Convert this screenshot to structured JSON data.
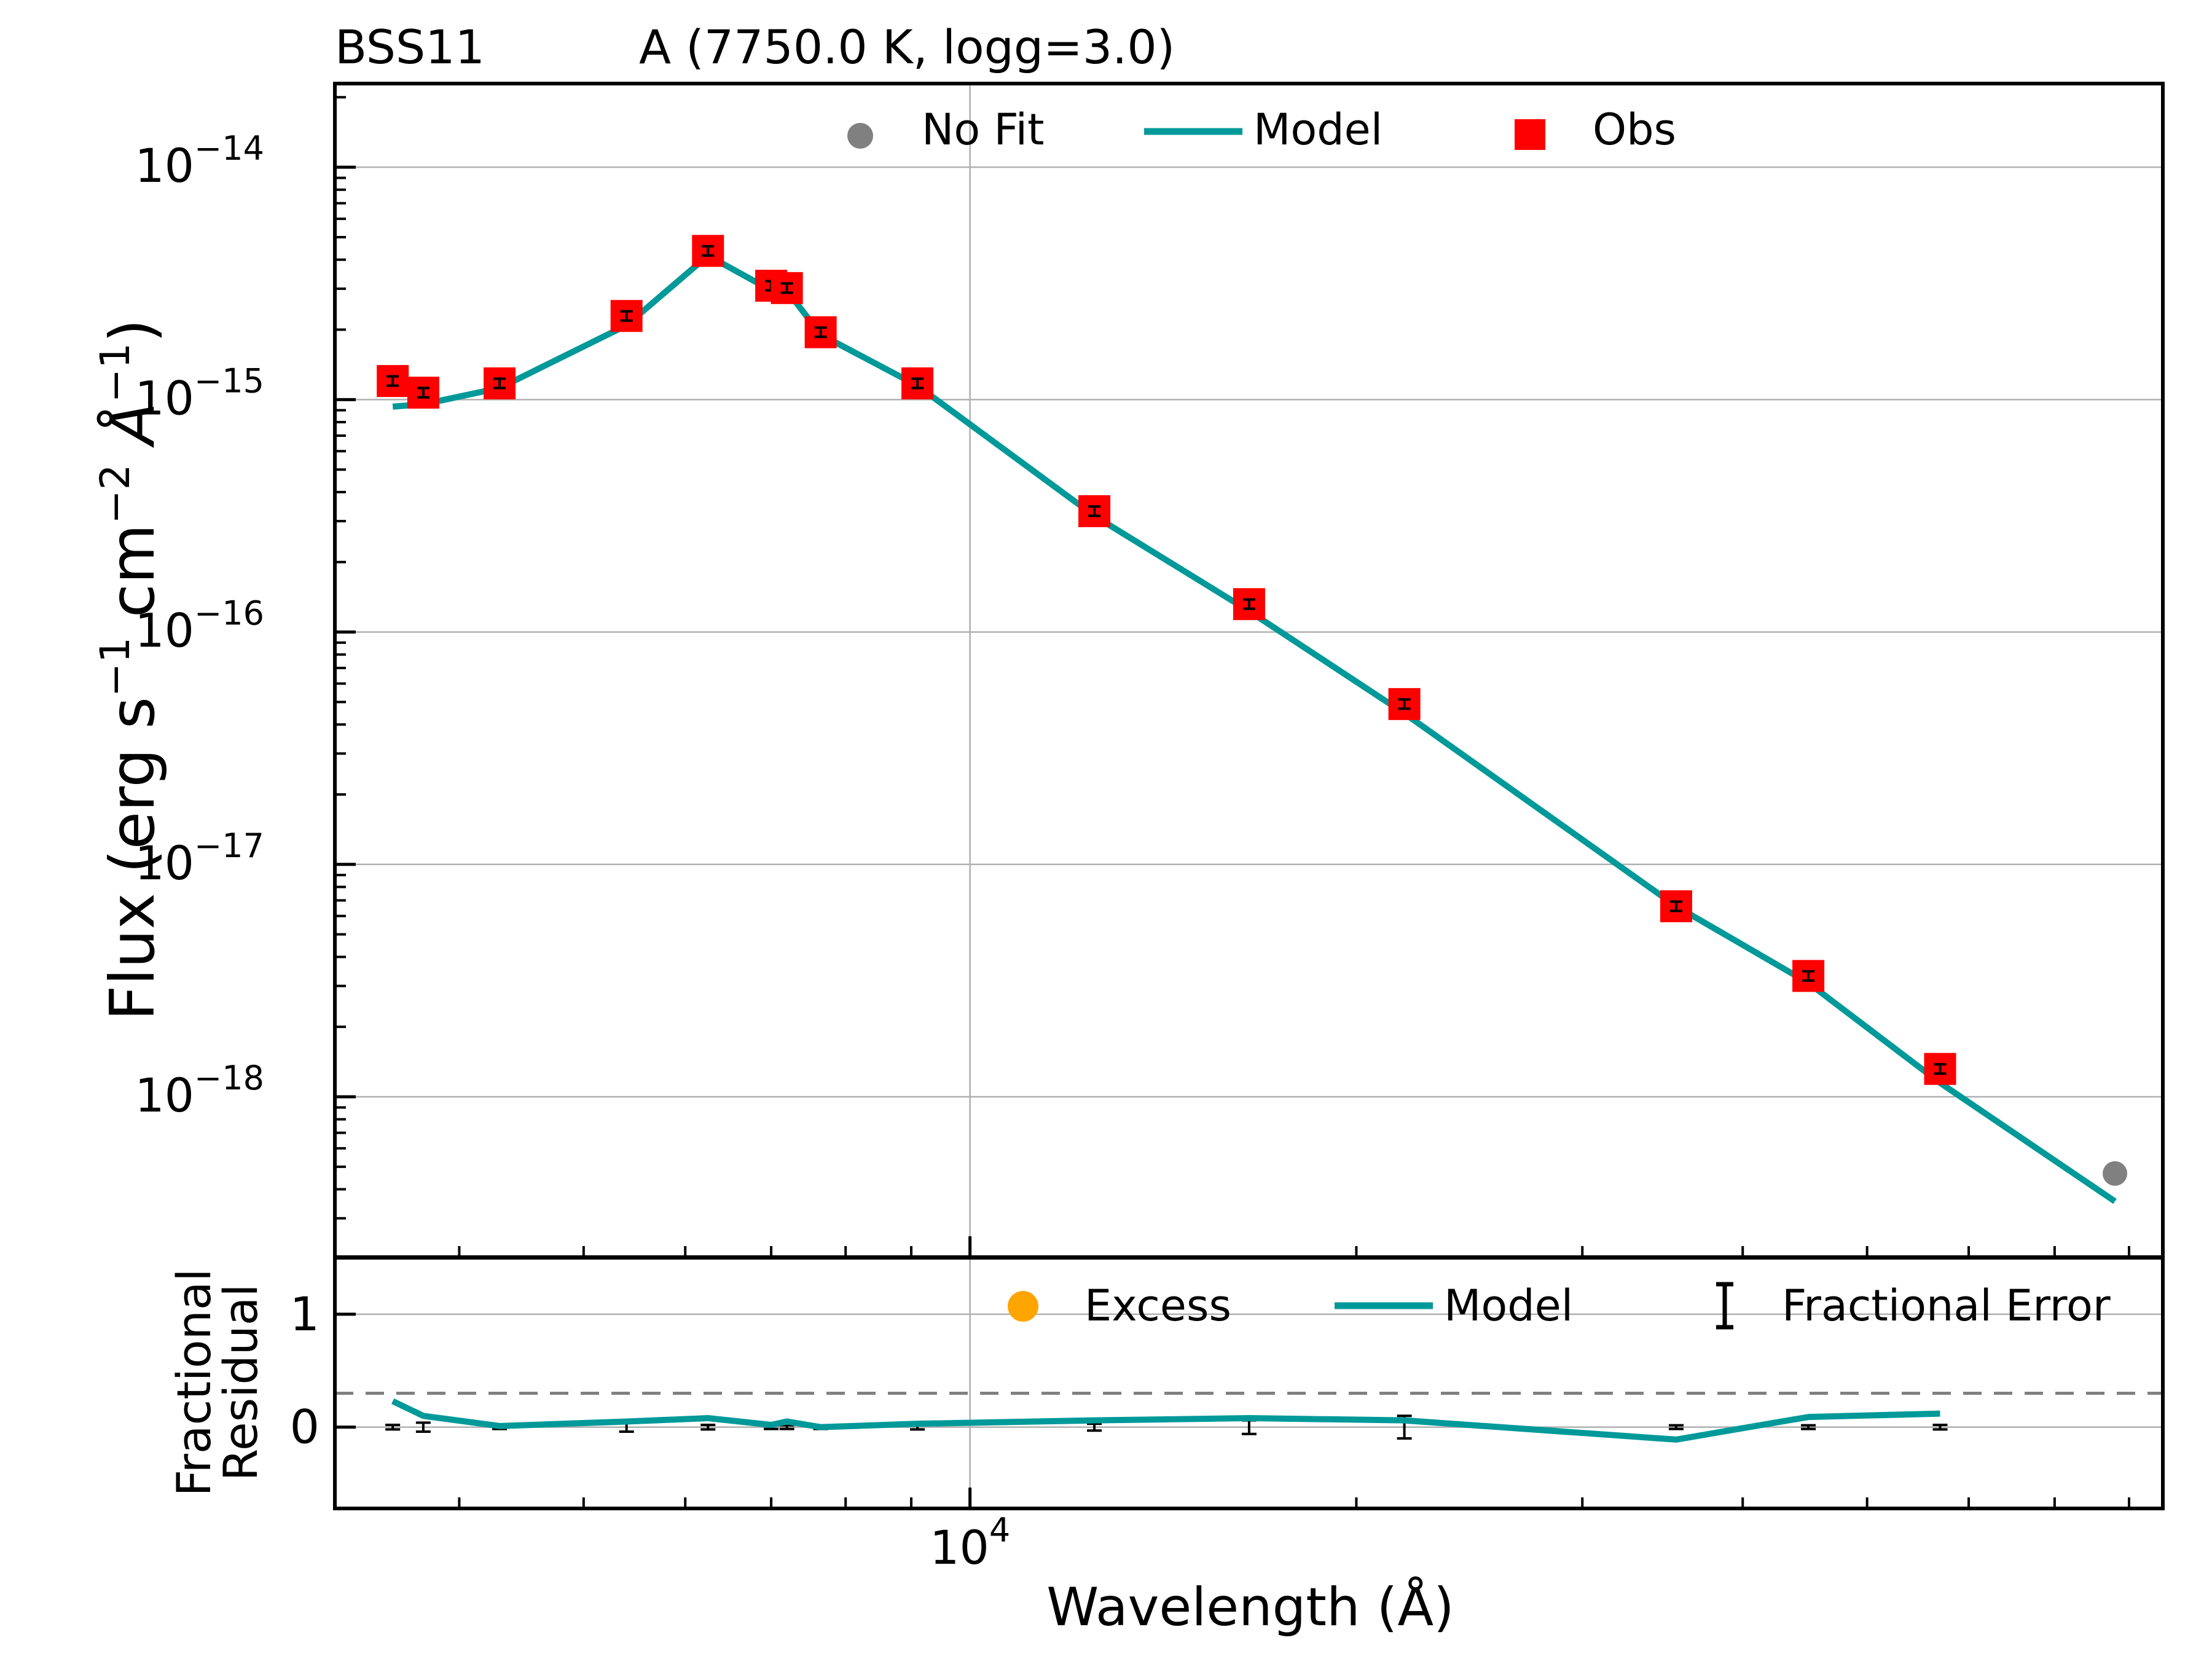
{
  "chart_data": [
    {
      "type": "scatter",
      "panel": "main",
      "title_left": "BSS11",
      "title_right": "A (7750.0 K, logg=3.0)",
      "xlabel": "",
      "ylabel_main": "Flux (erg s",
      "ylabel_sup1": "−1",
      "ylabel_mid": " cm",
      "ylabel_sup2": "−2",
      "ylabel_unit": " Å",
      "ylabel_sup3": "−1",
      "ylabel_end": ")",
      "xscale": "log",
      "yscale": "log",
      "xlim": [
        3200,
        85000
      ],
      "ylim_log10": [
        -18.69,
        -13.64
      ],
      "ytick_base": "10",
      "yticks": [
        {
          "exp": -14,
          "label": "−14"
        },
        {
          "exp": -15,
          "label": "−15"
        },
        {
          "exp": -16,
          "label": "−16"
        },
        {
          "exp": -17,
          "label": "−17"
        },
        {
          "exp": -18,
          "label": "−18"
        }
      ],
      "legend": [
        {
          "name": "No Fit",
          "marker": "circle",
          "color": "#808080"
        },
        {
          "name": "Model",
          "marker": "line",
          "color": "#009999"
        },
        {
          "name": "Obs",
          "marker": "square",
          "color": "#ff0000"
        }
      ],
      "legend_position": "top-center",
      "grid": true,
      "series": [
        {
          "name": "Obs",
          "color": "#ff0000",
          "x": [
            3550,
            3750,
            4300,
            5400,
            6250,
            7000,
            7200,
            7650,
            9100,
            12500,
            16500,
            21800,
            35500,
            45000,
            57000
          ],
          "y_log10": [
            -14.92,
            -14.97,
            -14.93,
            -14.64,
            -14.36,
            -14.51,
            -14.52,
            -14.71,
            -14.93,
            -15.48,
            -15.88,
            -16.31,
            -17.18,
            -17.48,
            -17.88
          ],
          "err": 0.02
        },
        {
          "name": "Model",
          "color": "#009999",
          "x": [
            3550,
            3750,
            4300,
            5400,
            6250,
            7000,
            7200,
            7650,
            9100,
            12500,
            16500,
            21800,
            35500,
            45000,
            57000,
            78000
          ],
          "y_log10": [
            -15.03,
            -15.02,
            -14.95,
            -14.68,
            -14.38,
            -14.53,
            -14.53,
            -14.72,
            -14.94,
            -15.5,
            -15.91,
            -16.35,
            -17.18,
            -17.51,
            -17.94,
            -18.45
          ]
        },
        {
          "name": "No Fit",
          "color": "#808080",
          "x": [
            78000
          ],
          "y_log10": [
            -18.33
          ]
        }
      ]
    },
    {
      "type": "line",
      "panel": "residual",
      "xlabel": "Wavelength (Å)",
      "ylabel_line1": "Fractional",
      "ylabel_line2": "Residual",
      "xscale": "log",
      "xlim": [
        3200,
        85000
      ],
      "ylim": [
        -0.72,
        1.5
      ],
      "yticks": [
        {
          "value": 1,
          "label": "1"
        },
        {
          "value": 0,
          "label": "0"
        }
      ],
      "xtick_major": {
        "value": 10000,
        "base": "10",
        "exp": "4"
      },
      "threshold_line": 0.3,
      "legend": [
        {
          "name": "Excess",
          "marker": "circle",
          "color": "#ffa500"
        },
        {
          "name": "Model",
          "marker": "line",
          "color": "#009999"
        },
        {
          "name": "Fractional Error",
          "marker": "errorbar",
          "color": "#000000"
        }
      ],
      "legend_position": "top-right",
      "grid": true,
      "series": [
        {
          "name": "Model",
          "color": "#009999",
          "x": [
            3550,
            3750,
            4300,
            5400,
            6250,
            7000,
            7200,
            7650,
            9100,
            12500,
            16500,
            21800,
            35500,
            45000,
            57000
          ],
          "y": [
            0.23,
            0.1,
            0.01,
            0.05,
            0.08,
            0.02,
            0.05,
            0.0,
            0.03,
            0.06,
            0.08,
            0.06,
            -0.11,
            0.09,
            0.12
          ]
        },
        {
          "name": "Fractional Error",
          "color": "#000000",
          "x": [
            3550,
            3750,
            4300,
            5400,
            6250,
            7000,
            7200,
            7650,
            9100,
            12500,
            16500,
            21800,
            35500,
            45000,
            57000
          ],
          "y": [
            0,
            0,
            0,
            0,
            0,
            0,
            0,
            0,
            0,
            0,
            0,
            0,
            0,
            0,
            0
          ],
          "err": [
            0.02,
            0.04,
            0.01,
            0.04,
            0.02,
            0.0,
            0.0,
            0.0,
            0.02,
            0.03,
            0.06,
            0.1,
            0.0,
            0.0,
            0.02
          ]
        }
      ]
    }
  ]
}
